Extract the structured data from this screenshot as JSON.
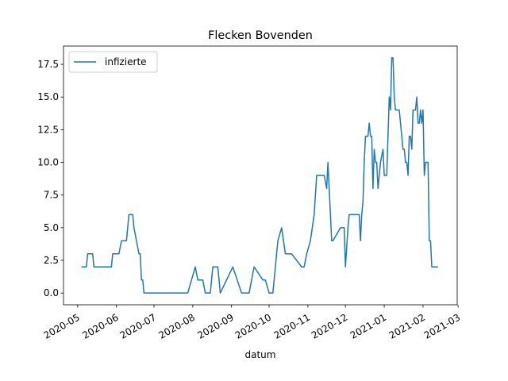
{
  "chart_data": {
    "type": "line",
    "title": "Flecken Bovenden",
    "xlabel": "datum",
    "x": [
      18386,
      18390,
      18391,
      18395,
      18396,
      18410,
      18411,
      18416,
      18418,
      18422,
      18423,
      18424,
      18427,
      18428,
      18432,
      18433,
      18434,
      18435,
      18436,
      18471,
      18474,
      18477,
      18479,
      18483,
      18484,
      18485,
      18489,
      18491,
      18495,
      18497,
      18507,
      18514,
      18520,
      18524,
      18531,
      18533,
      18536,
      18539,
      18541,
      18543,
      18546,
      18549,
      18554,
      18562,
      18564,
      18566,
      18569,
      18572,
      18574,
      18580,
      18582,
      18583,
      18584,
      18586,
      18587,
      18593,
      18596,
      18597,
      18599,
      18600,
      18602,
      18608,
      18609,
      18610,
      18611,
      18612,
      18613,
      18615,
      18616,
      18617,
      18618,
      18619,
      18620,
      18621,
      18622,
      18623,
      18624,
      18625,
      18627,
      18628,
      18630,
      18632,
      18633,
      18634,
      18635,
      18636,
      18637,
      18640,
      18642,
      18643,
      18644,
      18645,
      18646,
      18647,
      18648,
      18649,
      18650,
      18651,
      18653,
      18654,
      18655,
      18656,
      18657,
      18658,
      18659,
      18660,
      18661,
      18663,
      18664,
      18665,
      18666,
      18671
    ],
    "series": [
      {
        "name": "infizierte",
        "color": "#1f77b4",
        "values": [
          2,
          2,
          3,
          3,
          2,
          2,
          3,
          3,
          4,
          4,
          5,
          6,
          6,
          5,
          3,
          3,
          1,
          1,
          0,
          0,
          1,
          2,
          1,
          1,
          0.5,
          0,
          0,
          2,
          2,
          0,
          2,
          0,
          0,
          2,
          1,
          1,
          0,
          0,
          2,
          4,
          5,
          3,
          3,
          2,
          2,
          3,
          4,
          6,
          9,
          9,
          8,
          10,
          8,
          4,
          4,
          5,
          5,
          2,
          5,
          6,
          6,
          6,
          4,
          6,
          7,
          10,
          12,
          12,
          13,
          12,
          12,
          8,
          11,
          10,
          10,
          8,
          9,
          10,
          11,
          9,
          9,
          15,
          14,
          18,
          18,
          15,
          14,
          14,
          12,
          11,
          11,
          10,
          10,
          9,
          12,
          12,
          11,
          14,
          14,
          15,
          13,
          13,
          14,
          13,
          14,
          9,
          10,
          10,
          4,
          4,
          2,
          2
        ]
      }
    ],
    "xlim": [
      18371.7,
      18686.3
    ],
    "ylim": [
      -0.9,
      18.9
    ],
    "xticks": [
      {
        "value": 18383,
        "label": "2020-05"
      },
      {
        "value": 18414,
        "label": "2020-06"
      },
      {
        "value": 18444,
        "label": "2020-07"
      },
      {
        "value": 18475,
        "label": "2020-08"
      },
      {
        "value": 18506,
        "label": "2020-09"
      },
      {
        "value": 18536,
        "label": "2020-10"
      },
      {
        "value": 18567,
        "label": "2020-11"
      },
      {
        "value": 18597,
        "label": "2020-12"
      },
      {
        "value": 18628,
        "label": "2021-01"
      },
      {
        "value": 18659,
        "label": "2021-02"
      },
      {
        "value": 18687,
        "label": "2021-03"
      }
    ],
    "yticks": [
      {
        "value": 0,
        "label": "0.0"
      },
      {
        "value": 2.5,
        "label": "2.5"
      },
      {
        "value": 5,
        "label": "5.0"
      },
      {
        "value": 7.5,
        "label": "7.5"
      },
      {
        "value": 10,
        "label": "10.0"
      },
      {
        "value": 12.5,
        "label": "12.5"
      },
      {
        "value": 15,
        "label": "15.0"
      },
      {
        "value": 17.5,
        "label": "17.5"
      }
    ],
    "legend": "upper left"
  }
}
